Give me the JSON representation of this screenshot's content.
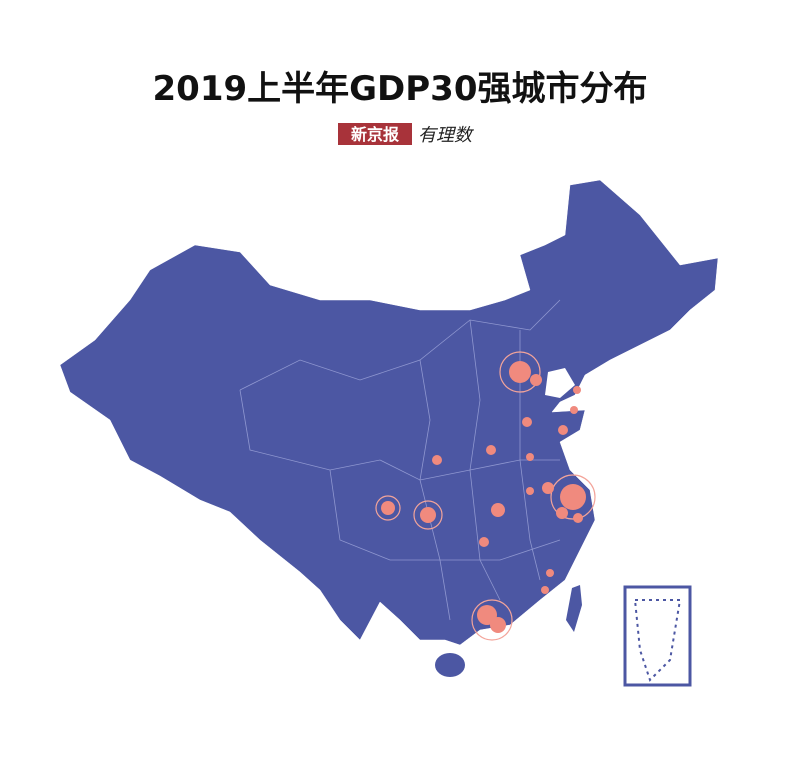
{
  "header": {
    "title": "2019上半年GDP30强城市分布",
    "logo": "新京报",
    "logo_sub": "有理数"
  }
}
